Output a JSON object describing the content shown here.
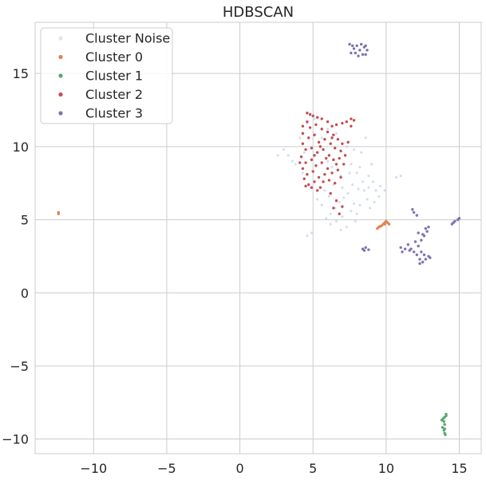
{
  "chart_data": {
    "type": "scatter",
    "title": "HDBSCAN",
    "xlabel": "",
    "ylabel": "",
    "xlim": [
      -14,
      16.5
    ],
    "ylim": [
      -11,
      18.5
    ],
    "xticks": [
      -10,
      -5,
      0,
      5,
      10,
      15
    ],
    "yticks": [
      -10,
      -5,
      0,
      5,
      10,
      15
    ],
    "xtick_labels": [
      "−10",
      "−5",
      "0",
      "5",
      "10",
      "15"
    ],
    "ytick_labels": [
      "−10",
      "−5",
      "0",
      "5",
      "10",
      "15"
    ],
    "grid": true,
    "legend": {
      "placement": "top-left",
      "entries": [
        {
          "name": "Cluster Noise",
          "color": "#dde6f2"
        },
        {
          "name": "Cluster 0",
          "color": "#dd8452"
        },
        {
          "name": "Cluster 1",
          "color": "#55a868"
        },
        {
          "name": "Cluster 2",
          "color": "#c44e52"
        },
        {
          "name": "Cluster 3",
          "color": "#8172b3"
        }
      ]
    },
    "series": [
      {
        "name": "Cluster Noise",
        "color": "#c6d4ea",
        "points": [
          [
            5.6,
            10.6
          ],
          [
            6.0,
            11.2
          ],
          [
            6.6,
            10.9
          ],
          [
            7.0,
            10.2
          ],
          [
            7.2,
            9.4
          ],
          [
            7.6,
            8.8
          ],
          [
            8.0,
            8.2
          ],
          [
            8.4,
            7.6
          ],
          [
            8.8,
            7.2
          ],
          [
            9.1,
            7.6
          ],
          [
            9.3,
            7.0
          ],
          [
            8.7,
            6.4
          ],
          [
            8.2,
            6.0
          ],
          [
            7.6,
            5.6
          ],
          [
            7.0,
            5.2
          ],
          [
            6.6,
            4.9
          ],
          [
            6.2,
            5.4
          ],
          [
            6.8,
            6.2
          ],
          [
            7.4,
            6.8
          ],
          [
            6.4,
            7.4
          ],
          [
            5.8,
            7.0
          ],
          [
            5.3,
            6.4
          ],
          [
            4.9,
            7.2
          ],
          [
            4.3,
            8.2
          ],
          [
            3.8,
            8.8
          ],
          [
            3.3,
            9.4
          ],
          [
            4.1,
            10.6
          ],
          [
            4.6,
            11.6
          ],
          [
            5.1,
            11.9
          ],
          [
            7.3,
            10.0
          ],
          [
            7.8,
            9.8
          ],
          [
            8.3,
            9.6
          ],
          [
            8.6,
            10.6
          ],
          [
            8.5,
            7.0
          ],
          [
            9.6,
            7.3
          ],
          [
            9.9,
            7.0
          ],
          [
            8.9,
            5.8
          ],
          [
            7.9,
            4.9
          ],
          [
            7.3,
            4.5
          ],
          [
            6.9,
            4.3
          ],
          [
            5.6,
            6.0
          ],
          [
            6.1,
            6.6
          ],
          [
            7.0,
            7.2
          ],
          [
            7.7,
            7.4
          ],
          [
            8.1,
            7.1
          ],
          [
            4.6,
            3.9
          ],
          [
            4.9,
            4.1
          ],
          [
            2.6,
            9.4
          ],
          [
            3.0,
            9.8
          ],
          [
            10.7,
            7.9
          ],
          [
            11.0,
            8.0
          ],
          [
            9.5,
            6.6
          ],
          [
            9.2,
            6.2
          ],
          [
            7.8,
            6.1
          ],
          [
            6.5,
            5.8
          ],
          [
            5.9,
            5.1
          ],
          [
            6.3,
            8.6
          ],
          [
            6.9,
            8.0
          ],
          [
            7.5,
            8.2
          ],
          [
            6.0,
            9.0
          ],
          [
            8.2,
            8.6
          ],
          [
            8.8,
            8.0
          ],
          [
            9.0,
            8.8
          ],
          [
            7.1,
            6.5
          ],
          [
            6.2,
            4.7
          ],
          [
            8.0,
            5.4
          ],
          [
            4.4,
            9.6
          ],
          [
            3.6,
            9.0
          ]
        ]
      },
      {
        "name": "Cluster 0",
        "color": "#dd8452",
        "points": [
          [
            -12.4,
            5.4
          ],
          [
            -12.4,
            5.5
          ],
          [
            9.4,
            4.4
          ],
          [
            9.5,
            4.5
          ],
          [
            9.6,
            4.55
          ],
          [
            9.7,
            4.6
          ],
          [
            9.8,
            4.7
          ],
          [
            9.9,
            4.8
          ],
          [
            10.0,
            4.9
          ],
          [
            10.1,
            4.8
          ],
          [
            10.2,
            4.7
          ],
          [
            9.9,
            4.7
          ]
        ]
      },
      {
        "name": "Cluster 1",
        "color": "#55a868",
        "points": [
          [
            13.9,
            -8.6
          ],
          [
            14.0,
            -8.5
          ],
          [
            14.1,
            -8.4
          ],
          [
            13.95,
            -8.8
          ],
          [
            14.0,
            -9.0
          ],
          [
            13.85,
            -9.2
          ],
          [
            13.95,
            -9.4
          ],
          [
            14.0,
            -9.6
          ],
          [
            14.05,
            -9.7
          ],
          [
            14.1,
            -8.3
          ],
          [
            13.8,
            -8.7
          ],
          [
            14.0,
            -9.3
          ]
        ]
      },
      {
        "name": "Cluster 2",
        "color": "#c44e52",
        "points": [
          [
            4.6,
            12.3
          ],
          [
            4.8,
            12.2
          ],
          [
            5.0,
            12.1
          ],
          [
            5.3,
            12.0
          ],
          [
            5.6,
            11.9
          ],
          [
            6.0,
            11.7
          ],
          [
            6.3,
            11.4
          ],
          [
            6.6,
            11.5
          ],
          [
            7.0,
            11.6
          ],
          [
            7.3,
            11.7
          ],
          [
            7.6,
            11.9
          ],
          [
            4.6,
            11.7
          ],
          [
            4.8,
            11.3
          ],
          [
            5.2,
            11.5
          ],
          [
            5.6,
            11.2
          ],
          [
            6.0,
            11.0
          ],
          [
            6.4,
            10.8
          ],
          [
            6.7,
            10.5
          ],
          [
            7.0,
            10.2
          ],
          [
            4.3,
            10.9
          ],
          [
            4.7,
            10.6
          ],
          [
            5.1,
            10.8
          ],
          [
            5.4,
            10.3
          ],
          [
            5.8,
            10.5
          ],
          [
            6.2,
            10.2
          ],
          [
            6.5,
            9.9
          ],
          [
            6.9,
            9.7
          ],
          [
            7.2,
            9.4
          ],
          [
            4.3,
            10.2
          ],
          [
            4.5,
            9.8
          ],
          [
            4.9,
            9.9
          ],
          [
            5.3,
            9.6
          ],
          [
            5.7,
            9.8
          ],
          [
            6.1,
            9.4
          ],
          [
            6.4,
            9.1
          ],
          [
            6.8,
            9.2
          ],
          [
            7.1,
            8.8
          ],
          [
            4.2,
            9.3
          ],
          [
            4.5,
            8.9
          ],
          [
            4.9,
            9.1
          ],
          [
            5.2,
            8.7
          ],
          [
            5.6,
            8.9
          ],
          [
            6.0,
            8.5
          ],
          [
            6.3,
            8.2
          ],
          [
            6.7,
            8.4
          ],
          [
            4.3,
            8.5
          ],
          [
            4.6,
            8.1
          ],
          [
            5.0,
            8.3
          ],
          [
            5.4,
            7.9
          ],
          [
            5.8,
            8.1
          ],
          [
            6.1,
            7.7
          ],
          [
            4.4,
            7.8
          ],
          [
            4.7,
            7.4
          ],
          [
            5.1,
            7.6
          ],
          [
            5.5,
            7.2
          ],
          [
            4.5,
            7.3
          ],
          [
            4.9,
            7.2
          ],
          [
            5.3,
            7.0
          ],
          [
            6.5,
            7.5
          ],
          [
            6.9,
            7.9
          ],
          [
            6.2,
            6.8
          ],
          [
            6.6,
            6.3
          ],
          [
            7.0,
            5.9
          ],
          [
            6.8,
            5.4
          ],
          [
            6.4,
            5.8
          ],
          [
            4.3,
            11.4
          ],
          [
            4.1,
            8.9
          ],
          [
            7.4,
            10.3
          ],
          [
            7.6,
            11.4
          ],
          [
            7.8,
            11.8
          ],
          [
            5.5,
            10.0
          ],
          [
            5.9,
            9.2
          ],
          [
            6.3,
            10.6
          ],
          [
            5.1,
            9.4
          ],
          [
            6.6,
            8.8
          ],
          [
            5.7,
            7.6
          ]
        ]
      },
      {
        "name": "Cluster 3",
        "color": "#8172b3",
        "points": [
          [
            7.6,
            16.4
          ],
          [
            7.8,
            16.7
          ],
          [
            8.0,
            16.9
          ],
          [
            8.3,
            17.0
          ],
          [
            8.5,
            16.8
          ],
          [
            8.7,
            16.6
          ],
          [
            8.4,
            16.3
          ],
          [
            8.1,
            16.2
          ],
          [
            7.9,
            16.4
          ],
          [
            8.2,
            16.6
          ],
          [
            8.6,
            16.9
          ],
          [
            7.7,
            16.9
          ],
          [
            7.5,
            17.0
          ],
          [
            8.6,
            16.3
          ],
          [
            11.0,
            3.1
          ],
          [
            11.3,
            3.0
          ],
          [
            11.6,
            2.9
          ],
          [
            11.9,
            2.8
          ],
          [
            12.1,
            2.6
          ],
          [
            12.3,
            2.3
          ],
          [
            12.5,
            2.1
          ],
          [
            12.7,
            2.3
          ],
          [
            12.9,
            2.5
          ],
          [
            12.2,
            3.2
          ],
          [
            12.4,
            3.6
          ],
          [
            12.6,
            3.9
          ],
          [
            12.8,
            4.2
          ],
          [
            12.9,
            4.5
          ],
          [
            12.5,
            4.0
          ],
          [
            12.0,
            3.5
          ],
          [
            11.5,
            3.3
          ],
          [
            11.1,
            2.8
          ],
          [
            12.6,
            2.6
          ],
          [
            13.0,
            2.4
          ],
          [
            12.3,
            2.0
          ],
          [
            12.7,
            4.4
          ],
          [
            12.2,
            4.1
          ],
          [
            11.8,
            5.7
          ],
          [
            11.9,
            5.5
          ],
          [
            12.1,
            5.3
          ],
          [
            14.5,
            4.7
          ],
          [
            14.7,
            4.9
          ],
          [
            14.9,
            5.0
          ],
          [
            15.0,
            5.1
          ],
          [
            14.6,
            4.8
          ],
          [
            8.4,
            3.0
          ],
          [
            8.6,
            3.1
          ],
          [
            8.8,
            2.95
          ],
          [
            8.5,
            2.9
          ],
          [
            12.4,
            2.8
          ],
          [
            11.7,
            3.0
          ]
        ]
      }
    ]
  }
}
